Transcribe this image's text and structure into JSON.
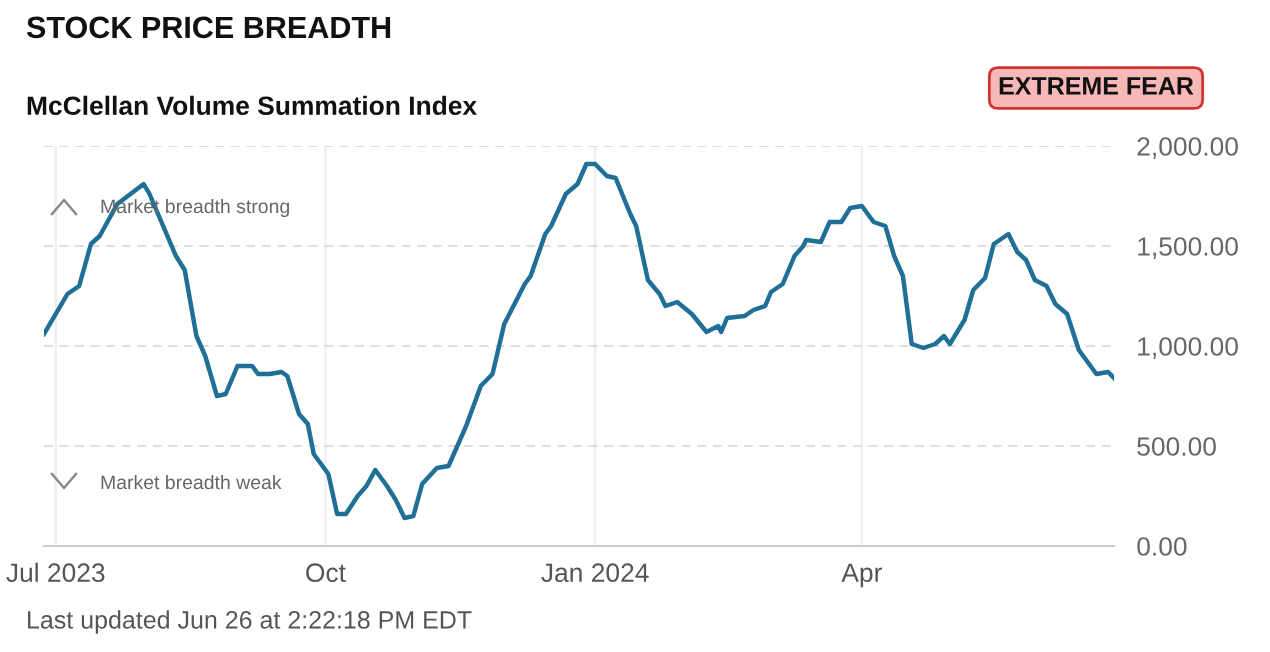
{
  "chart_data": {
    "type": "line",
    "title": "STOCK PRICE BREADTH",
    "subtitle": "McClellan Volume Summation Index",
    "annotations": [
      "EXTREME FEAR",
      "Market breadth strong",
      "Market breadth weak",
      "Last updated Jun 26 at 2:22:18 PM EDT"
    ],
    "x": [
      "2023-06-27",
      "2023-07-05",
      "2023-07-09",
      "2023-07-13",
      "2023-07-16",
      "2023-07-22",
      "2023-07-31",
      "2023-08-02",
      "2023-08-11",
      "2023-08-14",
      "2023-08-18",
      "2023-08-21",
      "2023-08-25",
      "2023-08-28",
      "2023-09-01",
      "2023-09-06",
      "2023-09-08",
      "2023-09-12",
      "2023-09-16",
      "2023-09-18",
      "2023-09-22",
      "2023-09-25",
      "2023-09-27",
      "2023-10-02",
      "2023-10-05",
      "2023-10-08",
      "2023-10-12",
      "2023-10-15",
      "2023-10-18",
      "2023-10-22",
      "2023-10-25",
      "2023-10-28",
      "2023-10-31",
      "2023-11-03",
      "2023-11-08",
      "2023-11-12",
      "2023-11-18",
      "2023-11-23",
      "2023-11-27",
      "2023-12-01",
      "2023-12-08",
      "2023-12-10",
      "2023-12-15",
      "2023-12-17",
      "2023-12-22",
      "2023-12-26",
      "2023-12-29",
      "2024-01-01",
      "2024-01-05",
      "2024-01-08",
      "2024-01-13",
      "2024-01-15",
      "2024-01-19",
      "2024-01-23",
      "2024-01-25",
      "2024-01-29",
      "2024-02-03",
      "2024-02-08",
      "2024-02-12",
      "2024-02-13",
      "2024-02-15",
      "2024-02-21",
      "2024-02-24",
      "2024-02-28",
      "2024-03-01",
      "2024-03-05",
      "2024-03-09",
      "2024-03-12",
      "2024-03-13",
      "2024-03-18",
      "2024-03-21",
      "2024-03-25",
      "2024-03-28",
      "2024-04-01",
      "2024-04-05",
      "2024-04-09",
      "2024-04-12",
      "2024-04-15",
      "2024-04-18",
      "2024-04-22",
      "2024-04-26",
      "2024-04-29",
      "2024-05-01",
      "2024-05-06",
      "2024-05-09",
      "2024-05-13",
      "2024-05-16",
      "2024-05-21",
      "2024-05-24",
      "2024-05-27",
      "2024-05-30",
      "2024-06-03",
      "2024-06-06",
      "2024-06-10",
      "2024-06-14",
      "2024-06-20",
      "2024-06-24",
      "2024-06-26"
    ],
    "series": [
      {
        "color": "#1f6f97",
        "values": [
          1060,
          1260,
          1300,
          1510,
          1550,
          1710,
          1810,
          1760,
          1450,
          1380,
          1050,
          950,
          750,
          760,
          900,
          900,
          860,
          860,
          870,
          850,
          660,
          610,
          460,
          360,
          160,
          160,
          250,
          300,
          380,
          300,
          230,
          140,
          150,
          310,
          390,
          400,
          600,
          800,
          860,
          1110,
          1310,
          1350,
          1560,
          1600,
          1760,
          1810,
          1910,
          1910,
          1850,
          1840,
          1660,
          1600,
          1330,
          1260,
          1200,
          1220,
          1160,
          1070,
          1100,
          1070,
          1140,
          1150,
          1180,
          1200,
          1270,
          1310,
          1450,
          1500,
          1530,
          1520,
          1620,
          1620,
          1690,
          1700,
          1620,
          1600,
          1450,
          1350,
          1010,
          990,
          1010,
          1050,
          1010,
          1130,
          1280,
          1340,
          1510,
          1560,
          1470,
          1430,
          1330,
          1300,
          1210,
          1160,
          980,
          860,
          870,
          840
        ]
      }
    ],
    "xlim": [
      "2023-06-27",
      "2024-06-26"
    ],
    "xticks": [
      {
        "value": "2023-07-01",
        "label": "Jul 2023"
      },
      {
        "value": "2023-10-01",
        "label": "Oct"
      },
      {
        "value": "2024-01-01",
        "label": "Jan 2024"
      },
      {
        "value": "2024-04-01",
        "label": "Apr"
      }
    ],
    "ylim": [
      0,
      2000
    ],
    "yticks": [
      {
        "value": 0,
        "label": "0.00"
      },
      {
        "value": 500,
        "label": "500.00"
      },
      {
        "value": 1000,
        "label": "1,000.00"
      },
      {
        "value": 1500,
        "label": "1,500.00"
      },
      {
        "value": 2000,
        "label": "2,000.00"
      }
    ],
    "grid": true,
    "legend": false,
    "marker": "none",
    "line_style": "solid"
  }
}
